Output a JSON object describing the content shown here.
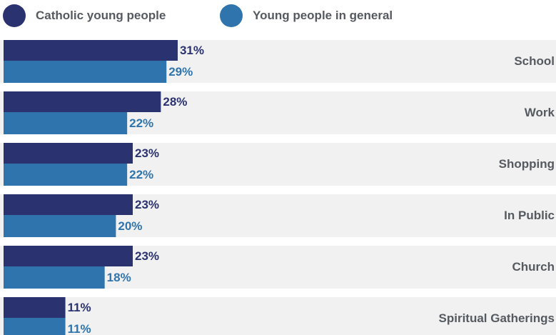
{
  "legend": [
    {
      "label": "Catholic young people",
      "color": "#2b3270"
    },
    {
      "label": "Young people in general",
      "color": "#3074ad"
    }
  ],
  "colors": {
    "row_background": "#f1f1f1",
    "catholic": "#2b3270",
    "general": "#3074ad"
  },
  "chart_data": {
    "type": "bar",
    "orientation": "horizontal",
    "categories": [
      "School",
      "Work",
      "Shopping",
      "In Public",
      "Church",
      "Spiritual Gatherings"
    ],
    "series": [
      {
        "name": "Catholic young people",
        "values": [
          31,
          28,
          23,
          23,
          23,
          11
        ]
      },
      {
        "name": "Young people in general",
        "values": [
          29,
          22,
          22,
          20,
          18,
          11
        ]
      }
    ],
    "value_suffix": "%",
    "xlim": [
      0,
      31
    ]
  }
}
